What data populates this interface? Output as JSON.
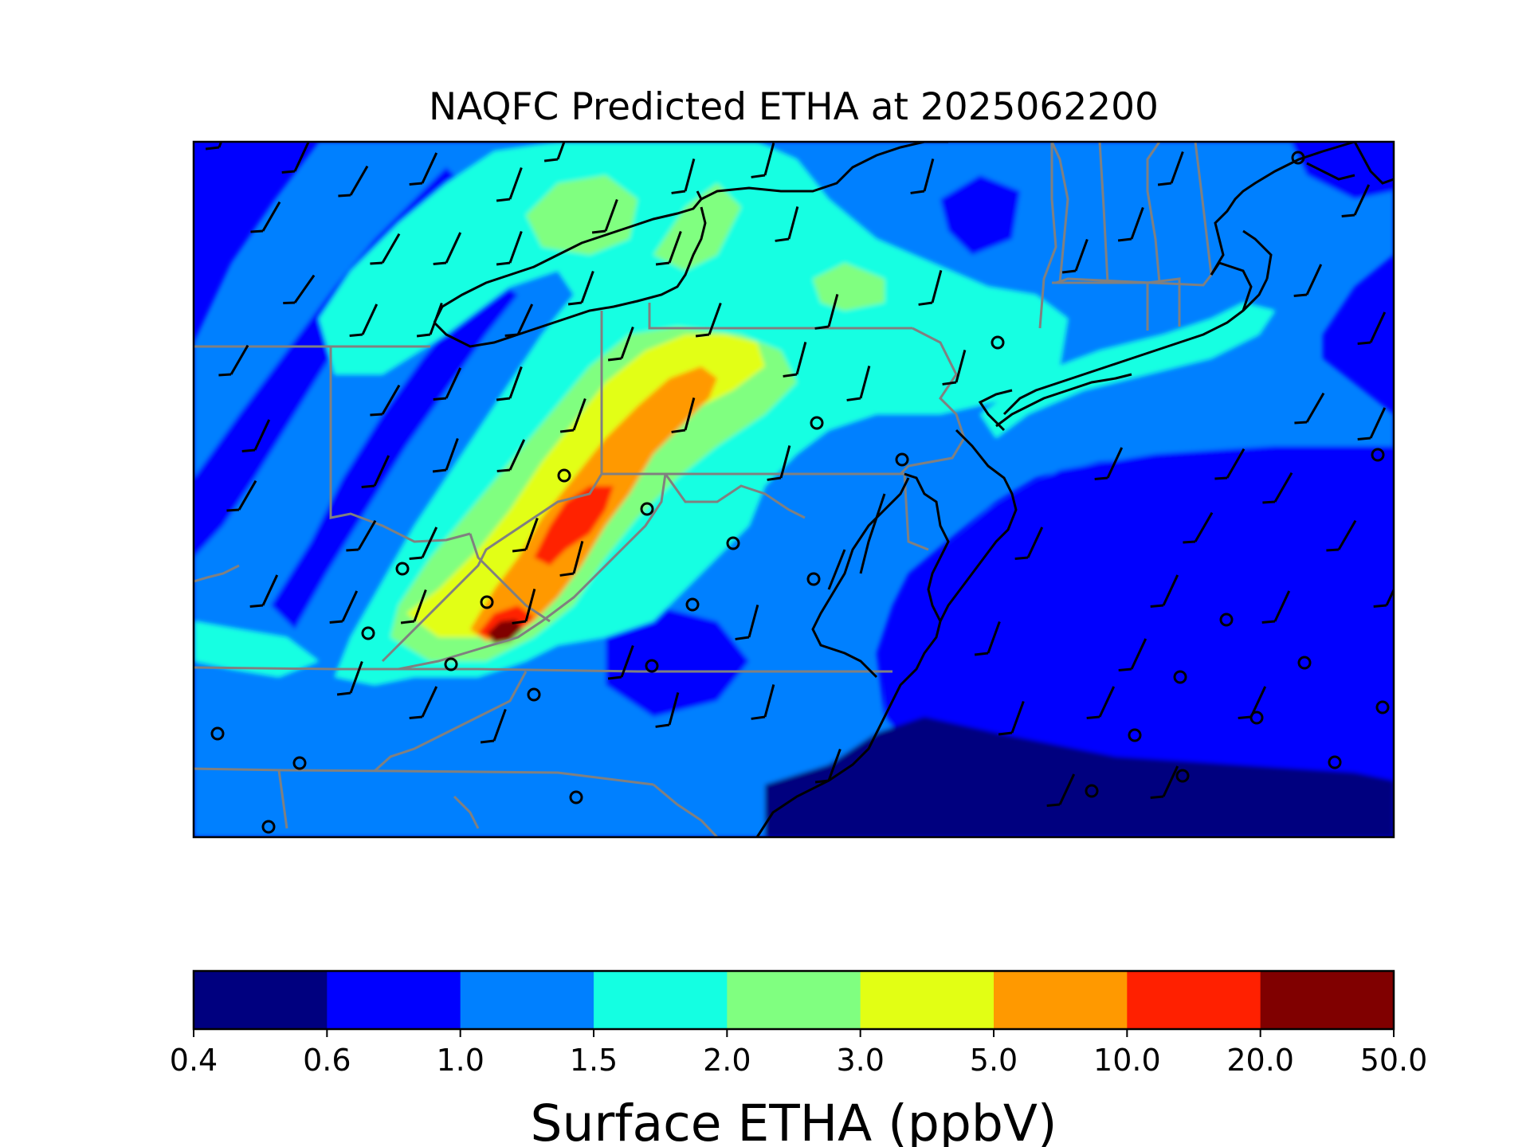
{
  "title": "NAQFC Predicted ETHA at 2025062200",
  "colorbar": {
    "label": "Surface ETHA (ppbV)",
    "ticks": [
      "0.4",
      "0.6",
      "1.0",
      "1.5",
      "2.0",
      "3.0",
      "5.0",
      "10.0",
      "20.0",
      "50.0"
    ],
    "colors": [
      "#00007f",
      "#0000ff",
      "#0080ff",
      "#14ffe2",
      "#80ff80",
      "#e2ff14",
      "#ff9900",
      "#ff2000",
      "#800000"
    ]
  },
  "palette": {
    "state_border": "#808080",
    "coastline": "#000000",
    "wind_barb": "#000000"
  },
  "chart_data": {
    "type": "heatmap",
    "variable": "Surface ETHA",
    "units": "ppbV",
    "levels": [
      0.4,
      0.6,
      1.0,
      1.5,
      2.0,
      3.0,
      5.0,
      10.0,
      20.0,
      50.0
    ],
    "grid_on": false,
    "legend": "colorbar-bottom"
  }
}
